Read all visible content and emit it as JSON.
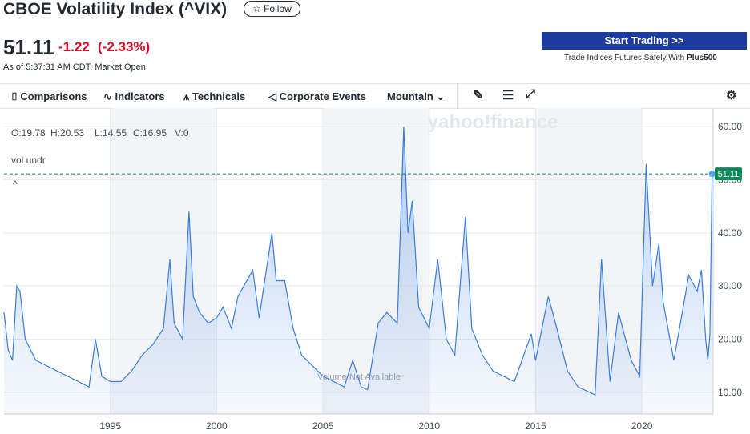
{
  "header": {
    "title": "CBOE Volatility Index (^VIX)",
    "follow": "Follow",
    "price": "51.11",
    "change": "-1.22",
    "change_pct": "(-2.33%)",
    "timestamp": "As of 5:37:31 AM CDT. Market Open."
  },
  "ad": {
    "button": "Start Trading >>",
    "text": "Trade Indices Futures Safely With ",
    "brand": "Plus500"
  },
  "toolbar": {
    "items": [
      "Comparisons",
      "Indicators",
      "Technicals",
      "Corporate Events",
      "Mountain"
    ]
  },
  "chart_data": {
    "type": "area",
    "ohlc": [
      "O:19.78",
      "H:20.53",
      "L:14.55",
      "C:16.95",
      "V:0"
    ],
    "study": "vol undr",
    "watermark": "yahoo!finance",
    "volume_note": "Volume Not Available",
    "color": "#3b7ddd",
    "x": [
      1990.0,
      1990.2,
      1990.4,
      1990.6,
      1990.75,
      1991.0,
      1991.5,
      1992.0,
      1992.5,
      1993.0,
      1993.5,
      1994.0,
      1994.3,
      1994.6,
      1995.0,
      1995.5,
      1996.0,
      1996.5,
      1997.0,
      1997.5,
      1997.8,
      1998.0,
      1998.4,
      1998.7,
      1998.9,
      1999.2,
      1999.6,
      2000.0,
      2000.3,
      2000.7,
      2001.0,
      2001.7,
      2002.0,
      2002.6,
      2002.8,
      2003.2,
      2003.6,
      2004.0,
      2004.5,
      2005.0,
      2005.5,
      2006.0,
      2006.4,
      2006.8,
      2007.1,
      2007.6,
      2008.0,
      2008.5,
      2008.8,
      2009.0,
      2009.2,
      2009.5,
      2010.0,
      2010.4,
      2010.8,
      2011.2,
      2011.7,
      2012.0,
      2012.5,
      2013.0,
      2013.5,
      2014.0,
      2014.8,
      2015.0,
      2015.6,
      2016.0,
      2016.5,
      2017.0,
      2017.8,
      2018.1,
      2018.5,
      2018.9,
      2019.5,
      2019.9,
      2020.2,
      2020.5,
      2020.8,
      2021.0,
      2021.5,
      2021.9,
      2022.2,
      2022.6,
      2022.8,
      2023.0,
      2023.1,
      2023.2,
      2023.3
    ],
    "values": [
      25,
      18,
      16,
      30,
      29,
      20,
      16,
      15,
      14,
      13,
      12,
      11,
      20,
      13,
      12,
      12,
      14,
      17,
      19,
      22,
      35,
      23,
      20,
      44,
      28,
      25,
      23,
      24,
      26,
      22,
      28,
      33,
      24,
      40,
      31,
      31,
      22,
      17,
      15,
      13,
      12,
      11,
      16,
      11,
      10.5,
      23,
      25,
      23,
      60,
      40,
      46,
      26,
      22,
      35,
      20,
      17,
      43,
      22,
      17,
      14,
      13,
      12,
      21,
      16,
      28,
      22,
      14,
      11,
      9.5,
      35,
      12,
      25,
      16,
      13,
      53,
      30,
      38,
      27,
      16,
      25,
      32,
      29,
      33,
      20,
      16,
      21,
      51.11
    ],
    "xlim": [
      1990,
      2023.35
    ],
    "xticks": [
      1995,
      2000,
      2005,
      2010,
      2015,
      2020
    ],
    "ylim": [
      5.9,
      63.5
    ],
    "yticks": [
      {
        "value": 10,
        "label": "10.00"
      },
      {
        "value": 20,
        "label": "20.00"
      },
      {
        "value": 30,
        "label": "30.00"
      },
      {
        "value": 40,
        "label": "40.00"
      },
      {
        "value": 50,
        "label": "50.00"
      },
      {
        "value": 60,
        "label": "60.00"
      }
    ],
    "grid": true
  }
}
